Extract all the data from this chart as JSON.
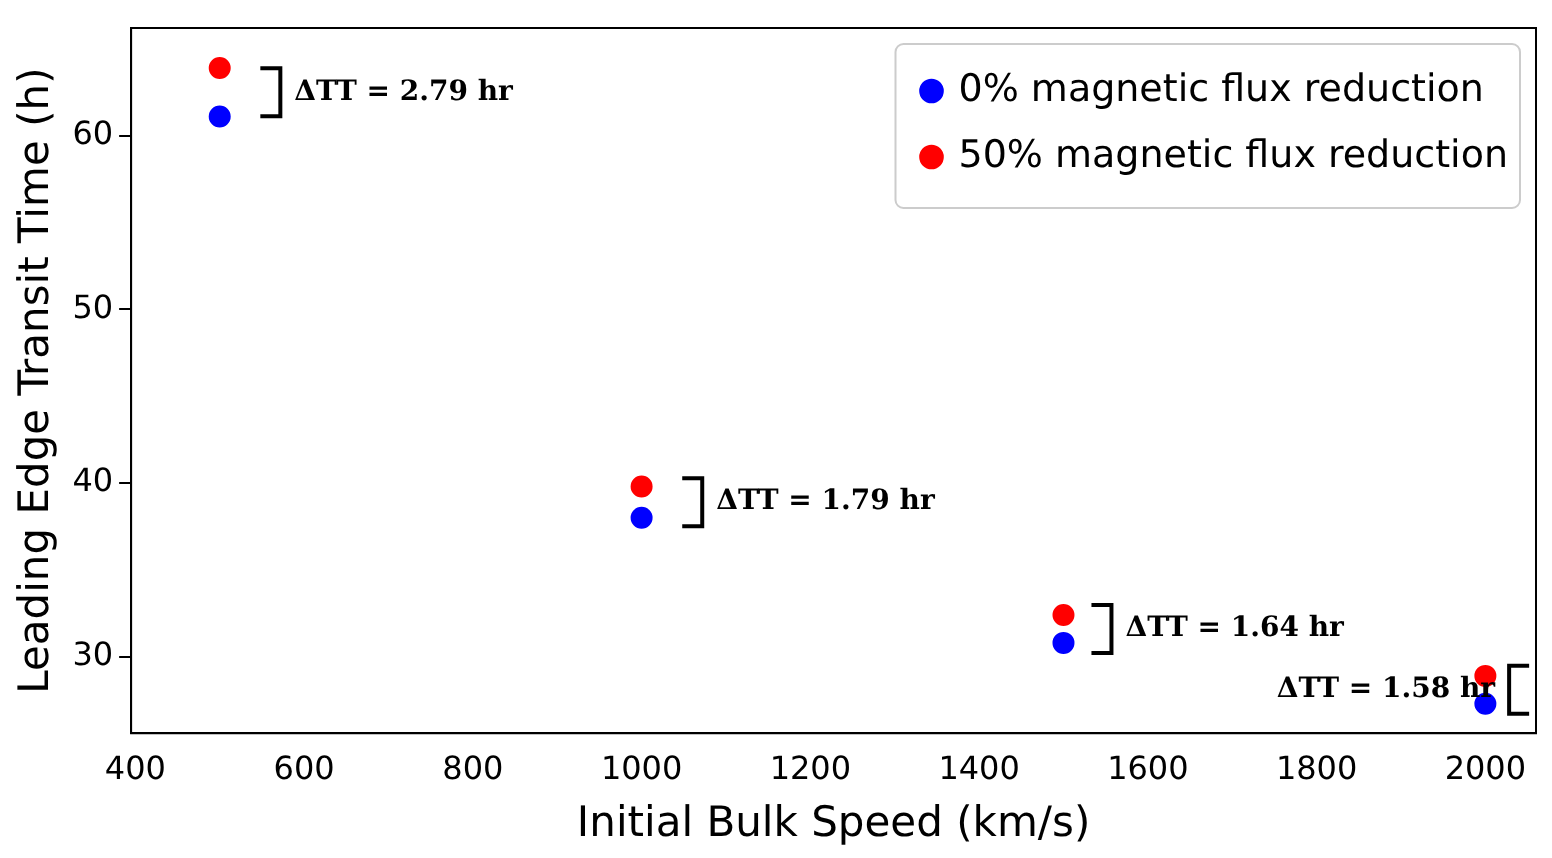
{
  "chart_data": {
    "type": "scatter",
    "xlabel": "Initial Bulk Speed (km/s)",
    "ylabel": "Leading Edge Transit Time (h)",
    "x": [
      500,
      1000,
      1500,
      2000
    ],
    "series": [
      {
        "name": "0% magnetic flux reduction",
        "color": "#0000ff",
        "values": [
          61.1,
          38.0,
          30.8,
          27.3
        ]
      },
      {
        "name": "50% magnetic flux reduction",
        "color": "#ff0000",
        "values": [
          63.9,
          39.8,
          32.4,
          28.9
        ]
      }
    ],
    "xlim": [
      395,
      2060
    ],
    "ylim": [
      25.6,
      66.2
    ],
    "xticks": [
      400,
      600,
      800,
      1000,
      1200,
      1400,
      1600,
      1800,
      2000
    ],
    "yticks": [
      30,
      40,
      50,
      60
    ],
    "grid": false,
    "legend": "top right",
    "marker": "circle",
    "annotations": [
      {
        "text": "ΔTT = 2.79 hr",
        "x": 560,
        "y": 62.5
      },
      {
        "text": "ΔTT = 1.79 hr",
        "x": 1060,
        "y": 38.9
      },
      {
        "text": "ΔTT = 1.64 hr",
        "x": 1545,
        "y": 31.6
      },
      {
        "text": "ΔTT = 1.58 hr",
        "x": 2040,
        "y": 28.1
      }
    ]
  }
}
